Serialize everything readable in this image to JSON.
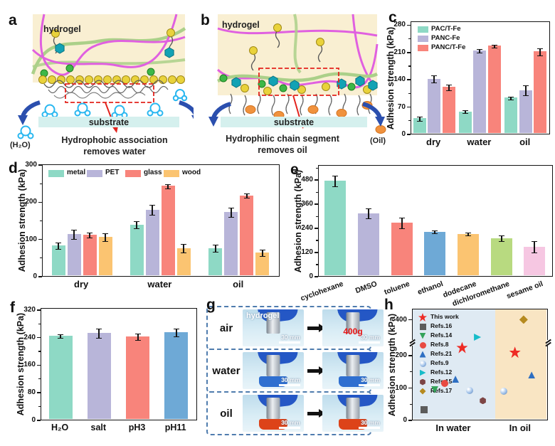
{
  "figure": {
    "letters": {
      "a": "a",
      "b": "b",
      "c": "c",
      "d": "d",
      "e": "e",
      "f": "f",
      "g": "g",
      "h": "h"
    },
    "a": {
      "hydrogel": "hydrogel",
      "substrate": "substrate",
      "molecule": "(H₂O)",
      "caption1": "Hydrophobic association",
      "caption2": "removes water"
    },
    "b": {
      "hydrogel": "hydrogel",
      "substrate": "substrate",
      "molecule": "(Oil)",
      "caption1": "Hydrophilic chain segment",
      "caption2": "removes oil"
    },
    "g": {
      "rows": [
        {
          "label": "air",
          "overlay1": "hydrogel",
          "overlay2": "400g",
          "scale": "30 mm"
        },
        {
          "label": "water",
          "scale": "30 mm"
        },
        {
          "label": "oil",
          "scale": "30 mm"
        }
      ]
    }
  },
  "chart_data": [
    {
      "panel": "c",
      "type": "bar",
      "ylabel": "Adhesion strength (kPa)",
      "yticks": [
        0,
        70,
        140,
        210,
        280
      ],
      "ylim": [
        0,
        290
      ],
      "categories": [
        "dry",
        "water",
        "oil"
      ],
      "series": [
        {
          "name": "PAC/T-Fe",
          "color": "#8ed9c5",
          "values": [
            38,
            56,
            92
          ],
          "errors": [
            5,
            3,
            3
          ]
        },
        {
          "name": "PANC-Fe",
          "color": "#b8b5d9",
          "values": [
            142,
            215,
            112
          ],
          "errors": [
            8,
            4,
            12
          ]
        },
        {
          "name": "PANC/T-Fe",
          "color": "#f8847b",
          "values": [
            120,
            228,
            213
          ],
          "errors": [
            7,
            3,
            8
          ]
        }
      ],
      "legend_position": "top-left",
      "grid": false
    },
    {
      "panel": "d",
      "type": "bar",
      "ylabel": "Adhesion strength (kPa)",
      "yticks": [
        0,
        100,
        200,
        300
      ],
      "ylim": [
        0,
        302
      ],
      "categories": [
        "dry",
        "water",
        "oil"
      ],
      "series": [
        {
          "name": "metal",
          "color": "#8ed9c5",
          "values": [
            82,
            139,
            74
          ],
          "errors": [
            8,
            8,
            9
          ]
        },
        {
          "name": "PET",
          "color": "#b8b5d9",
          "values": [
            113,
            180,
            173
          ],
          "errors": [
            11,
            12,
            12
          ]
        },
        {
          "name": "glass",
          "color": "#f8847b",
          "values": [
            111,
            245,
            219
          ],
          "errors": [
            6,
            5,
            5
          ]
        },
        {
          "name": "wood",
          "color": "#fbc471",
          "values": [
            105,
            74,
            62
          ],
          "errors": [
            9,
            11,
            8
          ]
        }
      ],
      "legend_position": "top-row",
      "grid": false
    },
    {
      "panel": "e",
      "type": "bar",
      "ylabel": "Adhesion strength (kPa)",
      "yticks": [
        0,
        120,
        240,
        360,
        480
      ],
      "ylim": [
        0,
        555
      ],
      "categories": [
        "cyclohexane",
        "DMSO",
        "toluene",
        "ethanol",
        "dodecane",
        "dichloromethane",
        "sesame oil"
      ],
      "values": [
        480,
        315,
        265,
        220,
        210,
        188,
        145
      ],
      "errors": [
        25,
        22,
        25,
        5,
        6,
        12,
        28
      ],
      "bar_colors": [
        "#8ed9c5",
        "#b8b5d9",
        "#f8847b",
        "#6ea9d6",
        "#fbc471",
        "#b8da80",
        "#f6c7e2"
      ],
      "grid": false
    },
    {
      "panel": "f",
      "type": "bar",
      "ylabel": "Adhesion strength (kPa)",
      "yticks": [
        0,
        80,
        160,
        240,
        320
      ],
      "ylim": [
        0,
        326
      ],
      "categories": [
        "H₂O",
        "salt",
        "pH3",
        "pH11"
      ],
      "values": [
        246,
        254,
        244,
        256
      ],
      "errors": [
        5,
        12,
        8,
        10
      ],
      "bar_colors": [
        "#8ed9c5",
        "#b8b5d9",
        "#f8847b",
        "#6ea9d6"
      ],
      "grid": false
    },
    {
      "panel": "h",
      "type": "scatter",
      "ylabel": "Adhesion strength (kPa)",
      "yticks": [
        0,
        100,
        200,
        400
      ],
      "yticks_minor": [
        50,
        150
      ],
      "ylim": [
        0,
        455
      ],
      "ybreak": {
        "value": 240,
        "fraction": 0.695,
        "upper_value": 400,
        "upper_fraction": 0.9
      },
      "regions": [
        {
          "label": "In water",
          "color": "#dfeaf3",
          "from": 0,
          "to": 0.617
        },
        {
          "label": "In oil",
          "color": "#f9e5c3",
          "from": 0.617,
          "to": 1
        }
      ],
      "legend": [
        {
          "label": "This work",
          "marker": "star",
          "color": "#ee2b25"
        },
        {
          "label": "Refs.16",
          "marker": "square",
          "color": "#5c5c5c"
        },
        {
          "label": "Refs.14",
          "marker": "tri-down",
          "color": "#33a35a"
        },
        {
          "label": "Refs.8",
          "marker": "circle",
          "color": "#e84a42"
        },
        {
          "label": "Refs.21",
          "marker": "tri-up",
          "color": "#2e6fc2"
        },
        {
          "label": "Refs.9",
          "marker": "sphere",
          "color": "#9fc0e8"
        },
        {
          "label": "Refs.12",
          "marker": "tri-right",
          "color": "#17bcc9"
        },
        {
          "label": "Refs.15",
          "marker": "hexagon",
          "color": "#7d4545"
        },
        {
          "label": "Refs.17",
          "marker": "diamond",
          "color": "#b68a1f"
        }
      ],
      "points": [
        {
          "label": "Refs.16",
          "marker": "square",
          "color": "#5c5c5c",
          "x": 0.085,
          "y": 28
        },
        {
          "label": "Refs.14",
          "marker": "tri-down",
          "color": "#33a35a",
          "x": 0.165,
          "y": 92
        },
        {
          "label": "Refs.8",
          "marker": "circle",
          "color": "#e84a42",
          "x": 0.24,
          "y": 112
        },
        {
          "label": "Refs.21",
          "marker": "tri-up",
          "color": "#2e6fc2",
          "x": 0.32,
          "y": 125
        },
        {
          "label": "This work",
          "marker": "star",
          "color": "#ee2b25",
          "x": 0.37,
          "y": 225
        },
        {
          "label": "Refs.9",
          "marker": "sphere",
          "color": "#9fc0e8",
          "x": 0.425,
          "y": 90
        },
        {
          "label": "Refs.12",
          "marker": "tri-right",
          "color": "#17bcc9",
          "x": 0.485,
          "y": 280
        },
        {
          "label": "Refs.15",
          "marker": "hexagon",
          "color": "#7d4545",
          "x": 0.525,
          "y": 57
        },
        {
          "label": "Refs.9",
          "marker": "sphere",
          "color": "#9fc0e8",
          "x": 0.68,
          "y": 88
        },
        {
          "label": "This work",
          "marker": "star",
          "color": "#ee2b25",
          "x": 0.765,
          "y": 210
        },
        {
          "label": "Refs.21",
          "marker": "tri-up",
          "color": "#2e6fc2",
          "x": 0.89,
          "y": 138
        },
        {
          "label": "Refs.17",
          "marker": "diamond",
          "color": "#b68a1f",
          "x": 0.83,
          "y": 405
        }
      ],
      "grid": false
    }
  ]
}
